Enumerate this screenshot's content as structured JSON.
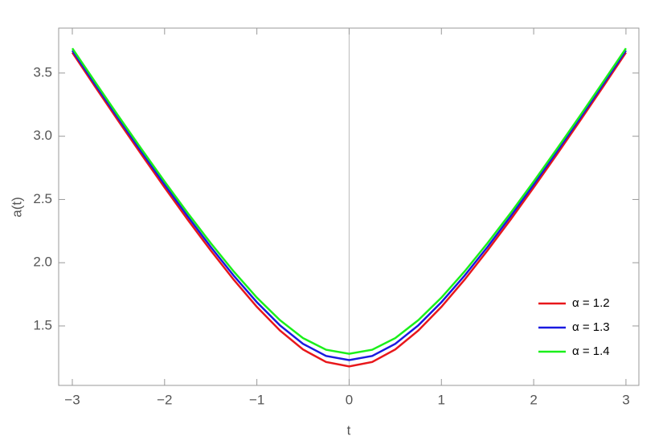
{
  "chart_data": {
    "type": "line",
    "x_label": "t",
    "y_label": "a(t)",
    "x": [
      -3,
      -2.75,
      -2.5,
      -2.25,
      -2,
      -1.75,
      -1.5,
      -1.25,
      -1,
      -0.75,
      -0.5,
      -0.25,
      0,
      0.25,
      0.5,
      0.75,
      1,
      1.25,
      1.5,
      1.75,
      2,
      2.25,
      2.5,
      2.75,
      3
    ],
    "series": [
      {
        "name": "α = 1.2",
        "color": "#e8171b",
        "values": [
          3.662,
          3.389,
          3.12,
          2.855,
          2.595,
          2.341,
          2.097,
          1.865,
          1.651,
          1.464,
          1.314,
          1.215,
          1.18,
          1.215,
          1.314,
          1.464,
          1.651,
          1.865,
          2.097,
          2.341,
          2.595,
          2.855,
          3.12,
          3.389,
          3.662
        ]
      },
      {
        "name": "α = 1.3",
        "color": "#1a1ae0",
        "values": [
          3.678,
          3.407,
          3.14,
          2.876,
          2.618,
          2.367,
          2.125,
          1.897,
          1.688,
          1.505,
          1.359,
          1.263,
          1.23,
          1.263,
          1.359,
          1.505,
          1.688,
          1.897,
          2.125,
          2.367,
          2.618,
          2.876,
          3.14,
          3.407,
          3.678
        ]
      },
      {
        "name": "α = 1.4",
        "color": "#1aef1a",
        "values": [
          3.695,
          3.426,
          3.159,
          2.898,
          2.642,
          2.393,
          2.155,
          1.93,
          1.724,
          1.546,
          1.404,
          1.312,
          1.28,
          1.312,
          1.404,
          1.546,
          1.724,
          1.93,
          2.155,
          2.393,
          2.642,
          2.898,
          3.159,
          3.426,
          3.695
        ]
      }
    ],
    "xlim": [
      -3.148,
      3.14
    ],
    "ylim": [
      1.03,
      3.855
    ],
    "xticks": [
      {
        "value": -3,
        "label": "−3"
      },
      {
        "value": -2,
        "label": "−2"
      },
      {
        "value": -1,
        "label": "−1"
      },
      0,
      1,
      2,
      3
    ],
    "yticks": [
      1.5,
      {
        "value": 2,
        "label": "2.0"
      },
      2.5,
      {
        "value": 3,
        "label": "3.0"
      },
      3.5
    ],
    "legend": "lower right"
  }
}
